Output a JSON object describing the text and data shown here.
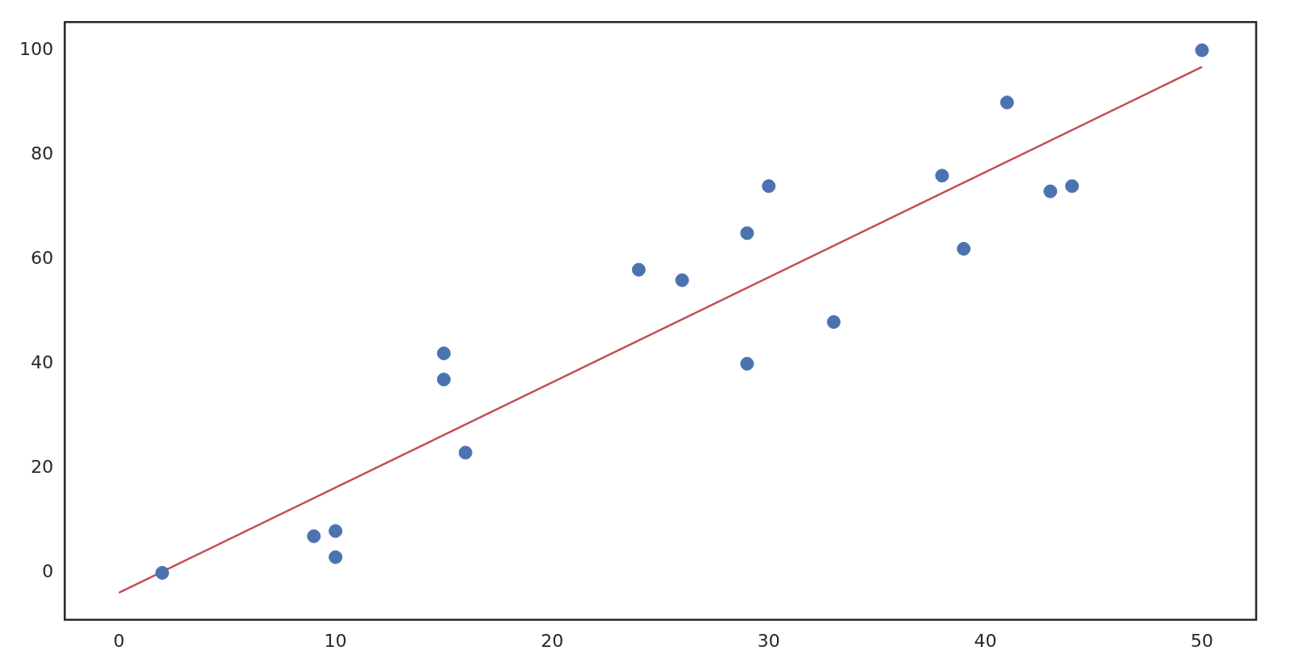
{
  "chart_data": {
    "type": "scatter",
    "xlim": [
      -2.5,
      52.5
    ],
    "ylim": [
      -9,
      105.4
    ],
    "xticks": [
      0,
      10,
      20,
      30,
      40,
      50
    ],
    "yticks": [
      0,
      20,
      40,
      60,
      80,
      100
    ],
    "series": [
      {
        "marker": "circle",
        "color": "#4c72b0",
        "x": [
          2,
          9,
          10,
          10,
          15,
          15,
          16,
          24,
          26,
          29,
          29,
          30,
          33,
          38,
          39,
          41,
          43,
          44,
          50
        ],
        "values": [
          0,
          7,
          8,
          3,
          42,
          37,
          23,
          58,
          56,
          65,
          40,
          74,
          48,
          76,
          62,
          90,
          73,
          74,
          100
        ]
      },
      {
        "type": "line",
        "marker": "none",
        "color": "#c44e52",
        "line_style": "solid",
        "x": [
          0,
          50
        ],
        "values": [
          -3.8,
          96.8
        ]
      }
    ]
  }
}
